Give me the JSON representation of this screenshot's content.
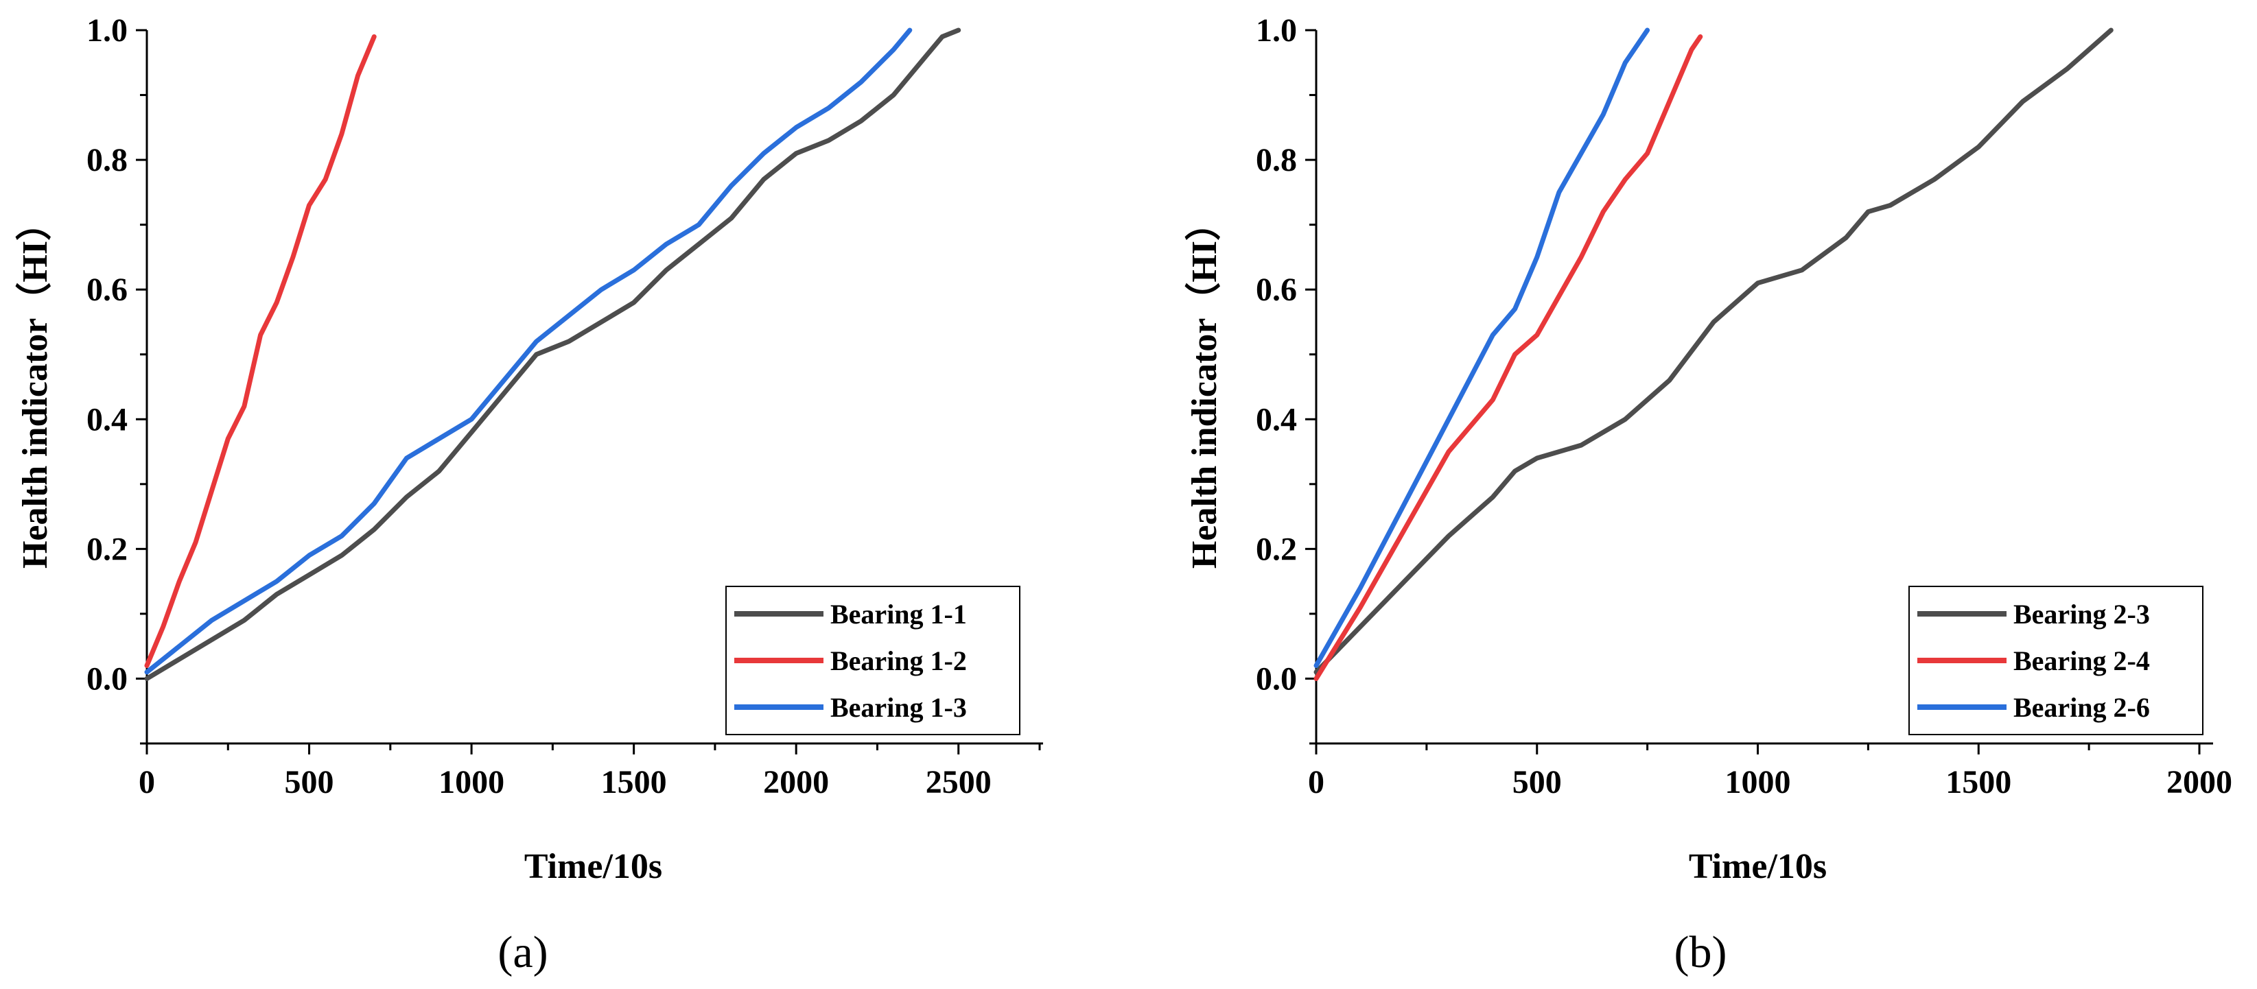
{
  "chart_data": [
    {
      "type": "line",
      "panel_label": "(a)",
      "xlabel": "Time/10s",
      "ylabel": "Health indicator（HI）",
      "xlim": [
        0,
        2750
      ],
      "ylim": [
        -0.1,
        1.0
      ],
      "xticks": [
        0,
        500,
        1000,
        1500,
        2000,
        2500
      ],
      "xtick_labels": [
        "0",
        "500",
        "1000",
        "1500",
        "2000",
        "2500"
      ],
      "yticks": [
        0.0,
        0.2,
        0.4,
        0.6,
        0.8,
        1.0
      ],
      "ytick_labels": [
        "0.0",
        "0.2",
        "0.4",
        "0.6",
        "0.8",
        "1.0"
      ],
      "legend_position": "bottom-right",
      "series": [
        {
          "name": "Bearing 1-1",
          "color": "#4d4d4d",
          "x": [
            0,
            100,
            200,
            300,
            400,
            500,
            600,
            700,
            800,
            900,
            1000,
            1100,
            1200,
            1300,
            1400,
            1500,
            1600,
            1700,
            1800,
            1900,
            2000,
            2100,
            2200,
            2300,
            2400,
            2450,
            2500
          ],
          "y": [
            0.0,
            0.03,
            0.06,
            0.09,
            0.13,
            0.16,
            0.19,
            0.23,
            0.28,
            0.32,
            0.38,
            0.44,
            0.5,
            0.52,
            0.55,
            0.58,
            0.63,
            0.67,
            0.71,
            0.77,
            0.81,
            0.83,
            0.86,
            0.9,
            0.96,
            0.99,
            1.0
          ]
        },
        {
          "name": "Bearing 1-2",
          "color": "#e8383a",
          "x": [
            0,
            50,
            100,
            150,
            200,
            250,
            300,
            350,
            400,
            450,
            500,
            550,
            600,
            650,
            700
          ],
          "y": [
            0.02,
            0.08,
            0.15,
            0.21,
            0.29,
            0.37,
            0.42,
            0.53,
            0.58,
            0.65,
            0.73,
            0.77,
            0.84,
            0.93,
            0.99
          ]
        },
        {
          "name": "Bearing 1-3",
          "color": "#2a6fdb",
          "x": [
            0,
            100,
            200,
            300,
            400,
            500,
            600,
            700,
            800,
            900,
            1000,
            1100,
            1200,
            1300,
            1400,
            1500,
            1600,
            1700,
            1800,
            1900,
            2000,
            2100,
            2200,
            2300,
            2350
          ],
          "y": [
            0.01,
            0.05,
            0.09,
            0.12,
            0.15,
            0.19,
            0.22,
            0.27,
            0.34,
            0.37,
            0.4,
            0.46,
            0.52,
            0.56,
            0.6,
            0.63,
            0.67,
            0.7,
            0.76,
            0.81,
            0.85,
            0.88,
            0.92,
            0.97,
            1.0
          ]
        }
      ]
    },
    {
      "type": "line",
      "panel_label": "(b)",
      "xlabel": "Time/10s",
      "ylabel": "Health indicator（HI）",
      "xlim": [
        0,
        2000
      ],
      "ylim": [
        -0.1,
        1.0
      ],
      "xticks": [
        0,
        500,
        1000,
        1500,
        2000
      ],
      "xtick_labels": [
        "0",
        "500",
        "1000",
        "1500",
        "2000"
      ],
      "yticks": [
        0.0,
        0.2,
        0.4,
        0.6,
        0.8,
        1.0
      ],
      "ytick_labels": [
        "0.0",
        "0.2",
        "0.4",
        "0.6",
        "0.8",
        "1.0"
      ],
      "legend_position": "bottom-right",
      "series": [
        {
          "name": "Bearing 2-3",
          "color": "#4d4d4d",
          "x": [
            0,
            100,
            200,
            300,
            400,
            450,
            500,
            600,
            700,
            800,
            900,
            1000,
            1100,
            1200,
            1250,
            1300,
            1400,
            1500,
            1600,
            1700,
            1800
          ],
          "y": [
            0.01,
            0.08,
            0.15,
            0.22,
            0.28,
            0.32,
            0.34,
            0.36,
            0.4,
            0.46,
            0.55,
            0.61,
            0.63,
            0.68,
            0.72,
            0.73,
            0.77,
            0.82,
            0.89,
            0.94,
            1.0
          ]
        },
        {
          "name": "Bearing 2-4",
          "color": "#e8383a",
          "x": [
            0,
            100,
            200,
            300,
            400,
            450,
            500,
            550,
            600,
            650,
            700,
            750,
            800,
            850,
            870
          ],
          "y": [
            0.0,
            0.11,
            0.23,
            0.35,
            0.43,
            0.5,
            0.53,
            0.59,
            0.65,
            0.72,
            0.77,
            0.81,
            0.89,
            0.97,
            0.99
          ]
        },
        {
          "name": "Bearing 2-6",
          "color": "#2a6fdb",
          "x": [
            0,
            100,
            200,
            300,
            400,
            450,
            500,
            550,
            600,
            650,
            700,
            750
          ],
          "y": [
            0.02,
            0.14,
            0.27,
            0.4,
            0.53,
            0.57,
            0.65,
            0.75,
            0.81,
            0.87,
            0.95,
            1.0
          ]
        }
      ]
    }
  ]
}
